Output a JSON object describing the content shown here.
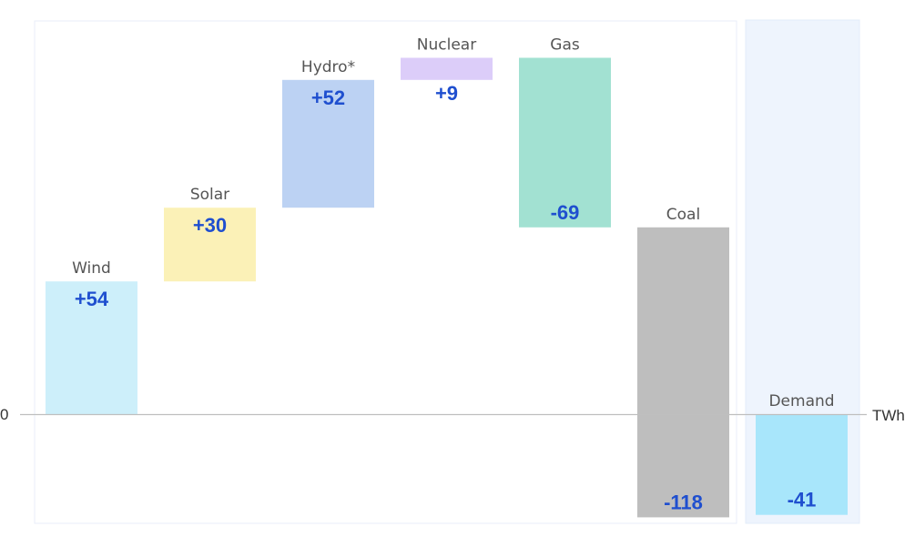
{
  "chart_data": {
    "type": "bar",
    "subtype": "waterfall",
    "unit": "TWh",
    "zero_label": "0",
    "categories": [
      "Wind",
      "Solar",
      "Hydro*",
      "Nuclear",
      "Gas",
      "Coal",
      "Demand"
    ],
    "values": [
      54,
      30,
      52,
      9,
      -69,
      -118,
      -41
    ],
    "value_labels": [
      "+54",
      "+30",
      "+52",
      "+9",
      "-69",
      "-118",
      "-41"
    ],
    "cumulative_start": [
      0,
      54,
      84,
      136,
      145,
      76,
      0
    ],
    "colors": [
      "#cdeffa",
      "#fbf1b7",
      "#bcd2f3",
      "#dccdf9",
      "#a2e1d2",
      "#bebebe",
      "#a8e6fb"
    ],
    "highlight_group": [
      "Demand"
    ],
    "highlight_color": "#eef4fd",
    "title": "",
    "xlabel": "",
    "ylabel": "TWh",
    "ylim": [
      -41,
      150
    ],
    "grid": false,
    "legend": "none"
  }
}
